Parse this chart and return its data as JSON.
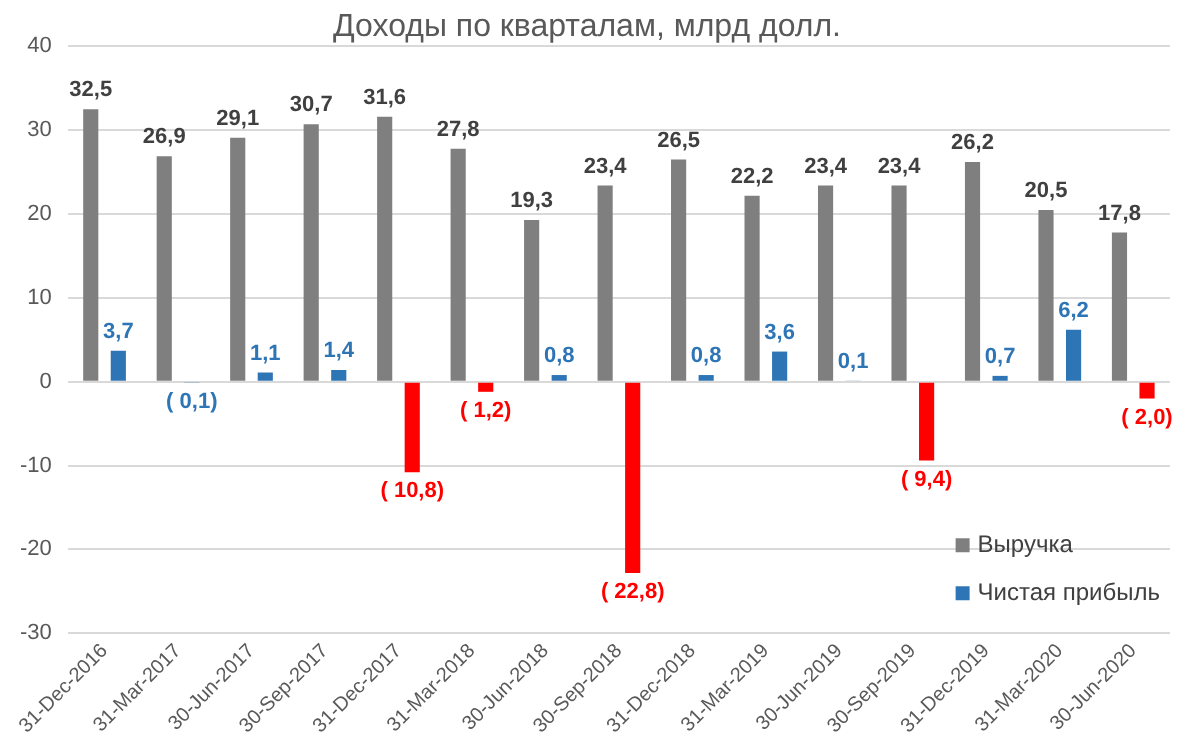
{
  "chart_data": {
    "type": "bar",
    "title": "Доходы по кварталам, млрд долл.",
    "categories": [
      "31-Dec-2016",
      "31-Mar-2017",
      "30-Jun-2017",
      "30-Sep-2017",
      "31-Dec-2017",
      "31-Mar-2018",
      "30-Jun-2018",
      "30-Sep-2018",
      "31-Dec-2018",
      "31-Mar-2019",
      "30-Jun-2019",
      "30-Sep-2019",
      "31-Dec-2019",
      "31-Mar-2020",
      "30-Jun-2020"
    ],
    "series": [
      {
        "name": "Выручка",
        "color": "#7f7f7f",
        "values": [
          32.5,
          26.9,
          29.1,
          30.7,
          31.6,
          27.8,
          19.3,
          23.4,
          26.5,
          22.2,
          23.4,
          23.4,
          26.2,
          20.5,
          17.8
        ],
        "value_labels": [
          "32,5",
          "26,9",
          "29,1",
          "30,7",
          "31,6",
          "27,8",
          "19,3",
          "23,4",
          "26,5",
          "22,2",
          "23,4",
          "23,4",
          "26,2",
          "20,5",
          "17,8"
        ]
      },
      {
        "name": "Чистая прибыль",
        "color": "#2e75b6",
        "colors": [
          "#2e75b6",
          "#2e75b6",
          "#2e75b6",
          "#2e75b6",
          "#ff0000",
          "#ff0000",
          "#2e75b6",
          "#ff0000",
          "#2e75b6",
          "#2e75b6",
          "#2e75b6",
          "#ff0000",
          "#2e75b6",
          "#2e75b6",
          "#ff0000"
        ],
        "values": [
          3.7,
          -0.1,
          1.1,
          1.4,
          -10.8,
          -1.2,
          0.8,
          -22.8,
          0.8,
          3.6,
          0.1,
          -9.4,
          0.7,
          6.2,
          -2.0
        ],
        "value_labels": [
          "3,7",
          "( 0,1)",
          "1,1",
          "1,4",
          "( 10,8)",
          "( 1,2)",
          "0,8",
          "( 22,8)",
          "0,8",
          "3,6",
          "0,1",
          "( 9,4)",
          "0,7",
          "6,2",
          "( 2,0)"
        ]
      }
    ],
    "ylim": [
      -30,
      40
    ],
    "yticks": [
      -30,
      -20,
      -10,
      0,
      10,
      20,
      30,
      40
    ],
    "grid": "y",
    "legend": "bottom right"
  }
}
